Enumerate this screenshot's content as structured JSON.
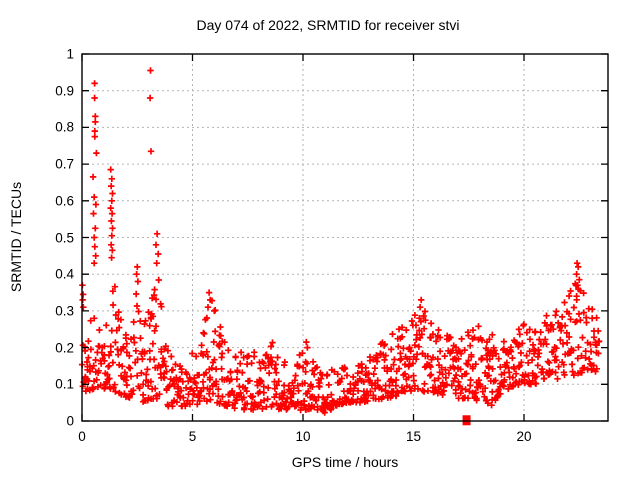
{
  "chart_data": {
    "type": "scatter",
    "title": "Day 074 of 2022, SRMTID for receiver stvi",
    "xlabel": "GPS time / hours",
    "ylabel": "SRMTID / TECUs",
    "xlim": [
      0,
      23.8
    ],
    "ylim": [
      0,
      1
    ],
    "grid": "dotted gray at major ticks, mirrored inward ticks on all four borders",
    "legend": "none",
    "marker": "plus",
    "marker_color": "#ff0000",
    "grid_color": "#b3b3b3",
    "border_color": "#000000",
    "xticks": {
      "values": [
        0,
        5,
        10,
        15,
        20
      ],
      "labels": [
        "0",
        "5",
        "10",
        "15",
        "20"
      ]
    },
    "yticks": {
      "values": [
        0,
        0.1,
        0.2,
        0.3,
        0.4,
        0.5,
        0.6,
        0.7,
        0.8,
        0.9,
        1
      ],
      "labels": [
        "0",
        "0.1",
        "0.2",
        "0.3",
        "0.4",
        "0.5",
        "0.6",
        "0.7",
        "0.8",
        "0.9",
        "1"
      ]
    },
    "flag_point": {
      "x": 17.4,
      "y": 0.002,
      "marker": "filled-square",
      "color": "#ff0000"
    },
    "outlier_points": [
      [
        0.57,
        0.92
      ],
      [
        0.57,
        0.88
      ],
      [
        0.6,
        0.83
      ],
      [
        0.6,
        0.815
      ],
      [
        0.58,
        0.79
      ],
      [
        0.58,
        0.775
      ],
      [
        0.65,
        0.73
      ],
      [
        0.5,
        0.665
      ],
      [
        0.55,
        0.61
      ],
      [
        0.63,
        0.59
      ],
      [
        0.52,
        0.565
      ],
      [
        0.6,
        0.525
      ],
      [
        0.55,
        0.5
      ],
      [
        0.58,
        0.475
      ],
      [
        0.62,
        0.45
      ],
      [
        0.55,
        0.43
      ],
      [
        1.3,
        0.685
      ],
      [
        1.35,
        0.66
      ],
      [
        1.32,
        0.64
      ],
      [
        1.38,
        0.62
      ],
      [
        1.35,
        0.6
      ],
      [
        1.3,
        0.58
      ],
      [
        1.36,
        0.565
      ],
      [
        1.33,
        0.545
      ],
      [
        1.38,
        0.525
      ],
      [
        1.35,
        0.505
      ],
      [
        1.32,
        0.48
      ],
      [
        1.37,
        0.465
      ],
      [
        1.34,
        0.445
      ],
      [
        3.1,
        0.955
      ],
      [
        3.08,
        0.88
      ],
      [
        3.12,
        0.735
      ],
      [
        3.4,
        0.51
      ],
      [
        3.35,
        0.48
      ],
      [
        3.45,
        0.455
      ],
      [
        3.38,
        0.43
      ],
      [
        2.5,
        0.42
      ],
      [
        2.47,
        0.4
      ],
      [
        2.53,
        0.38
      ],
      [
        5.75,
        0.35
      ],
      [
        5.8,
        0.33
      ],
      [
        5.7,
        0.31
      ],
      [
        10.15,
        0.215
      ],
      [
        10.2,
        0.2
      ],
      [
        15.35,
        0.33
      ],
      [
        15.3,
        0.31
      ],
      [
        22.4,
        0.43
      ],
      [
        22.45,
        0.42
      ],
      [
        22.38,
        0.4
      ],
      [
        22.5,
        0.385
      ],
      [
        22.42,
        0.37
      ],
      [
        22.55,
        0.355
      ],
      [
        0.02,
        0.37
      ],
      [
        0.05,
        0.345
      ],
      [
        0.03,
        0.33
      ],
      [
        0.06,
        0.31
      ]
    ],
    "dense_band_envelope_nodes": [
      [
        0.0,
        0.08,
        0.37
      ],
      [
        0.3,
        0.08,
        0.3
      ],
      [
        0.7,
        0.09,
        0.27
      ],
      [
        1.0,
        0.08,
        0.22
      ],
      [
        1.4,
        0.08,
        0.4
      ],
      [
        1.8,
        0.07,
        0.28
      ],
      [
        2.2,
        0.06,
        0.22
      ],
      [
        2.5,
        0.06,
        0.38
      ],
      [
        2.8,
        0.05,
        0.3
      ],
      [
        3.1,
        0.05,
        0.35
      ],
      [
        3.5,
        0.05,
        0.4
      ],
      [
        3.8,
        0.04,
        0.22
      ],
      [
        4.2,
        0.04,
        0.16
      ],
      [
        4.6,
        0.04,
        0.15
      ],
      [
        5.0,
        0.04,
        0.2
      ],
      [
        5.4,
        0.05,
        0.24
      ],
      [
        5.8,
        0.05,
        0.34
      ],
      [
        6.1,
        0.05,
        0.3
      ],
      [
        6.5,
        0.04,
        0.22
      ],
      [
        7.0,
        0.03,
        0.18
      ],
      [
        7.5,
        0.03,
        0.21
      ],
      [
        8.0,
        0.03,
        0.19
      ],
      [
        8.5,
        0.04,
        0.24
      ],
      [
        9.0,
        0.03,
        0.18
      ],
      [
        9.5,
        0.03,
        0.14
      ],
      [
        10.0,
        0.03,
        0.2
      ],
      [
        10.3,
        0.03,
        0.21
      ],
      [
        10.7,
        0.03,
        0.14
      ],
      [
        11.0,
        0.02,
        0.13
      ],
      [
        11.5,
        0.04,
        0.16
      ],
      [
        12.0,
        0.05,
        0.15
      ],
      [
        12.5,
        0.05,
        0.16
      ],
      [
        13.0,
        0.05,
        0.19
      ],
      [
        13.5,
        0.06,
        0.21
      ],
      [
        14.0,
        0.06,
        0.24
      ],
      [
        14.5,
        0.07,
        0.26
      ],
      [
        15.0,
        0.08,
        0.29
      ],
      [
        15.4,
        0.08,
        0.32
      ],
      [
        15.8,
        0.08,
        0.27
      ],
      [
        16.2,
        0.07,
        0.25
      ],
      [
        16.6,
        0.07,
        0.24
      ],
      [
        17.0,
        0.06,
        0.22
      ],
      [
        17.4,
        0.06,
        0.24
      ],
      [
        17.8,
        0.05,
        0.26
      ],
      [
        18.2,
        0.05,
        0.27
      ],
      [
        18.6,
        0.04,
        0.24
      ],
      [
        19.0,
        0.08,
        0.21
      ],
      [
        19.4,
        0.09,
        0.24
      ],
      [
        19.8,
        0.1,
        0.27
      ],
      [
        20.2,
        0.1,
        0.26
      ],
      [
        20.6,
        0.1,
        0.24
      ],
      [
        21.0,
        0.12,
        0.29
      ],
      [
        21.4,
        0.11,
        0.31
      ],
      [
        21.8,
        0.12,
        0.33
      ],
      [
        22.2,
        0.12,
        0.38
      ],
      [
        22.5,
        0.13,
        0.4
      ],
      [
        22.8,
        0.12,
        0.36
      ],
      [
        23.0,
        0.11,
        0.32
      ],
      [
        23.2,
        0.13,
        0.3
      ],
      [
        23.45,
        0.16,
        0.28
      ]
    ],
    "point_cloud_generation": {
      "note": "dense noisy band reconstructed procedurally between envelope nodes",
      "n_points": 900,
      "seed": 42,
      "x_max": 23.45,
      "x_jitter": 0.06,
      "low_bias_power": 1.7,
      "vertical_run_prob": 0.28
    }
  }
}
